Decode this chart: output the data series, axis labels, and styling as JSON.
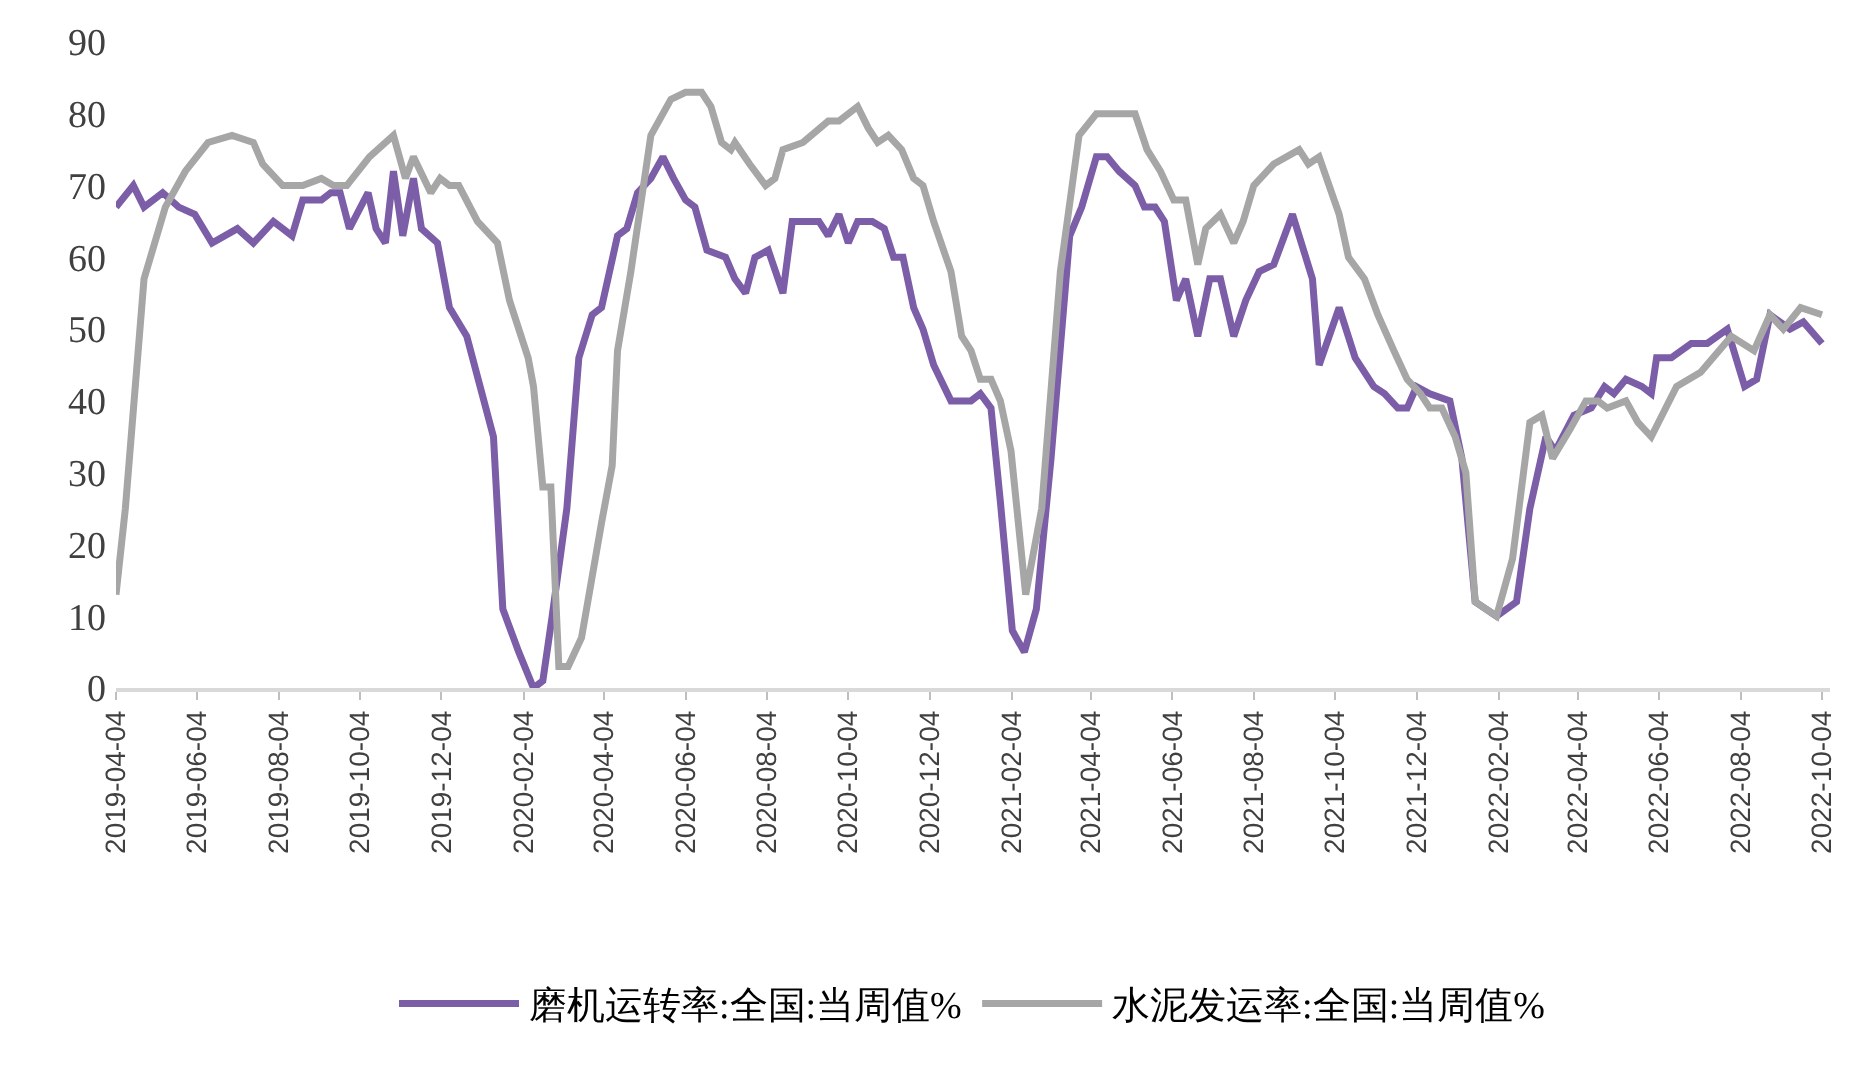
{
  "chart_data": {
    "type": "line",
    "xlim": [
      "2019-04-04",
      "2022-10-10"
    ],
    "xticks": [
      "2019-04-04",
      "2019-06-04",
      "2019-08-04",
      "2019-10-04",
      "2019-12-04",
      "2020-02-04",
      "2020-04-04",
      "2020-06-04",
      "2020-08-04",
      "2020-10-04",
      "2020-12-04",
      "2021-02-04",
      "2021-04-04",
      "2021-06-04",
      "2021-08-04",
      "2021-10-04",
      "2021-12-04",
      "2022-02-04",
      "2022-04-04",
      "2022-06-04",
      "2022-08-04",
      "2022-10-04"
    ],
    "ylim": [
      0,
      90
    ],
    "yticks": [
      0,
      10,
      20,
      30,
      40,
      50,
      60,
      70,
      80,
      90
    ],
    "grid": false,
    "legend": "bottom",
    "marker": "none",
    "line_style": "solid",
    "series": [
      {
        "name": "磨机运转率:全国:当周值%",
        "color": "#7b5ea7",
        "x": [
          "2019-04-04",
          "2019-04-17",
          "2019-04-25",
          "2019-05-09",
          "2019-05-21",
          "2019-06-02",
          "2019-06-15",
          "2019-07-04",
          "2019-07-16",
          "2019-07-31",
          "2019-08-14",
          "2019-08-22",
          "2019-09-05",
          "2019-09-12",
          "2019-09-19",
          "2019-09-26",
          "2019-10-10",
          "2019-10-16",
          "2019-10-23",
          "2019-10-29",
          "2019-11-05",
          "2019-11-13",
          "2019-11-19",
          "2019-12-01",
          "2019-12-10",
          "2019-12-23",
          "2020-01-12",
          "2020-01-19",
          "2020-01-31",
          "2020-02-11",
          "2020-02-18",
          "2020-02-25",
          "2020-03-07",
          "2020-03-16",
          "2020-03-26",
          "2020-04-02",
          "2020-04-14",
          "2020-04-21",
          "2020-04-29",
          "2020-05-09",
          "2020-05-18",
          "2020-05-26",
          "2020-06-04",
          "2020-06-11",
          "2020-06-20",
          "2020-07-04",
          "2020-07-11",
          "2020-07-19",
          "2020-07-26",
          "2020-08-05",
          "2020-08-16",
          "2020-08-23",
          "2020-09-01",
          "2020-09-12",
          "2020-09-19",
          "2020-09-27",
          "2020-10-04",
          "2020-10-11",
          "2020-10-22",
          "2020-10-31",
          "2020-11-07",
          "2020-11-14",
          "2020-11-22",
          "2020-11-29",
          "2020-12-07",
          "2020-12-20",
          "2021-01-04",
          "2021-01-11",
          "2021-01-19",
          "2021-01-26",
          "2021-02-04",
          "2021-02-13",
          "2021-02-22",
          "2021-03-05",
          "2021-03-19",
          "2021-03-28",
          "2021-04-08",
          "2021-04-16",
          "2021-04-25",
          "2021-05-07",
          "2021-05-14",
          "2021-05-22",
          "2021-05-29",
          "2021-06-07",
          "2021-06-14",
          "2021-06-23",
          "2021-07-02",
          "2021-07-10",
          "2021-07-20",
          "2021-07-29",
          "2021-08-08",
          "2021-08-19",
          "2021-09-02",
          "2021-09-17",
          "2021-09-22",
          "2021-10-07",
          "2021-10-19",
          "2021-11-02",
          "2021-11-10",
          "2021-11-20",
          "2021-11-27",
          "2021-12-04",
          "2021-12-14",
          "2021-12-29",
          "2022-01-07",
          "2022-01-17",
          "2022-02-02",
          "2022-02-17",
          "2022-02-27",
          "2022-03-11",
          "2022-03-18",
          "2022-04-01",
          "2022-04-14",
          "2022-04-24",
          "2022-05-01",
          "2022-05-10",
          "2022-05-22",
          "2022-05-29",
          "2022-06-02",
          "2022-06-13",
          "2022-06-28",
          "2022-07-10",
          "2022-07-25",
          "2022-08-07",
          "2022-08-16",
          "2022-08-26",
          "2022-09-10",
          "2022-09-20",
          "2022-10-04"
        ],
        "values": [
          67,
          70,
          67,
          69,
          67,
          66,
          62,
          64,
          62,
          65,
          63,
          68,
          68,
          69,
          69,
          64,
          69,
          64,
          62,
          72,
          63,
          71,
          64,
          62,
          53,
          49,
          35,
          11,
          5,
          0,
          1,
          10,
          25,
          46,
          52,
          53,
          63,
          64,
          69,
          71,
          74,
          71,
          68,
          67,
          61,
          60,
          57,
          55,
          60,
          61,
          55,
          65,
          65,
          65,
          63,
          66,
          62,
          65,
          65,
          64,
          60,
          60,
          53,
          50,
          45,
          40,
          40,
          41,
          39,
          26,
          8,
          5,
          11,
          32,
          63,
          67,
          74,
          74,
          72,
          70,
          67,
          67,
          65,
          54,
          57,
          49,
          57,
          57,
          49,
          54,
          58,
          59,
          66,
          57,
          45,
          53,
          46,
          42,
          41,
          39,
          39,
          42,
          41,
          40,
          32,
          12,
          10,
          12,
          25,
          35,
          33,
          38,
          39,
          42,
          41,
          43,
          42,
          41,
          46,
          46,
          48,
          48,
          50,
          42,
          43,
          52,
          50,
          51,
          48
        ]
      },
      {
        "name": "水泥发运率:全国:当周值%",
        "color": "#a6a6a6",
        "x": [
          "2019-04-04",
          "2019-04-11",
          "2019-04-25",
          "2019-05-11",
          "2019-05-26",
          "2019-06-12",
          "2019-06-30",
          "2019-07-16",
          "2019-07-23",
          "2019-08-07",
          "2019-08-22",
          "2019-09-05",
          "2019-09-14",
          "2019-09-24",
          "2019-10-11",
          "2019-10-29",
          "2019-11-07",
          "2019-11-13",
          "2019-11-26",
          "2019-12-03",
          "2019-12-10",
          "2019-12-17",
          "2019-12-31",
          "2020-01-15",
          "2020-01-24",
          "2020-02-07",
          "2020-02-11",
          "2020-02-18",
          "2020-02-24",
          "2020-03-01",
          "2020-03-08",
          "2020-03-18",
          "2020-04-02",
          "2020-04-10",
          "2020-04-14",
          "2020-04-24",
          "2020-05-09",
          "2020-05-24",
          "2020-06-04",
          "2020-06-16",
          "2020-06-23",
          "2020-07-01",
          "2020-07-08",
          "2020-07-11",
          "2020-07-22",
          "2020-08-03",
          "2020-08-10",
          "2020-08-16",
          "2020-08-31",
          "2020-09-19",
          "2020-09-27",
          "2020-10-11",
          "2020-10-19",
          "2020-10-26",
          "2020-11-03",
          "2020-11-13",
          "2020-11-22",
          "2020-11-29",
          "2020-12-07",
          "2020-12-20",
          "2020-12-28",
          "2021-01-04",
          "2021-01-11",
          "2021-01-19",
          "2021-01-26",
          "2021-02-03",
          "2021-02-14",
          "2021-02-26",
          "2021-03-12",
          "2021-03-26",
          "2021-04-08",
          "2021-04-20",
          "2021-05-07",
          "2021-05-16",
          "2021-05-26",
          "2021-06-05",
          "2021-06-14",
          "2021-06-23",
          "2021-06-29",
          "2021-07-10",
          "2021-07-20",
          "2021-07-27",
          "2021-08-04",
          "2021-08-19",
          "2021-09-07",
          "2021-09-14",
          "2021-09-22",
          "2021-10-07",
          "2021-10-14",
          "2021-10-26",
          "2021-11-05",
          "2021-11-17",
          "2021-11-27",
          "2021-12-07",
          "2021-12-14",
          "2021-12-23",
          "2022-01-02",
          "2022-01-10",
          "2022-01-17",
          "2022-02-02",
          "2022-02-14",
          "2022-02-27",
          "2022-03-08",
          "2022-03-16",
          "2022-03-29",
          "2022-04-10",
          "2022-04-19",
          "2022-04-26",
          "2022-05-10",
          "2022-05-19",
          "2022-05-29",
          "2022-06-17",
          "2022-07-05",
          "2022-07-28",
          "2022-08-14",
          "2022-08-26",
          "2022-09-05",
          "2022-09-18",
          "2022-10-04"
        ],
        "values": [
          13,
          25,
          57,
          67,
          72,
          76,
          77,
          76,
          73,
          70,
          70,
          71,
          70,
          70,
          74,
          77,
          71,
          74,
          69,
          71,
          70,
          70,
          65,
          62,
          54,
          46,
          42,
          28,
          28,
          3,
          3,
          7,
          23,
          31,
          47,
          58,
          77,
          82,
          83,
          83,
          81,
          76,
          75,
          76,
          73,
          70,
          71,
          75,
          76,
          79,
          79,
          81,
          78,
          76,
          77,
          75,
          71,
          70,
          65,
          58,
          49,
          47,
          43,
          43,
          40,
          33,
          13,
          25,
          58,
          77,
          80,
          80,
          80,
          75,
          72,
          68,
          68,
          59,
          64,
          66,
          62,
          65,
          70,
          73,
          75,
          73,
          74,
          66,
          60,
          57,
          52,
          47,
          43,
          41,
          39,
          39,
          35,
          30,
          12,
          10,
          18,
          37,
          38,
          32,
          36,
          40,
          40,
          39,
          40,
          37,
          35,
          42,
          44,
          49,
          47,
          52,
          50,
          53,
          52
        ]
      }
    ]
  }
}
